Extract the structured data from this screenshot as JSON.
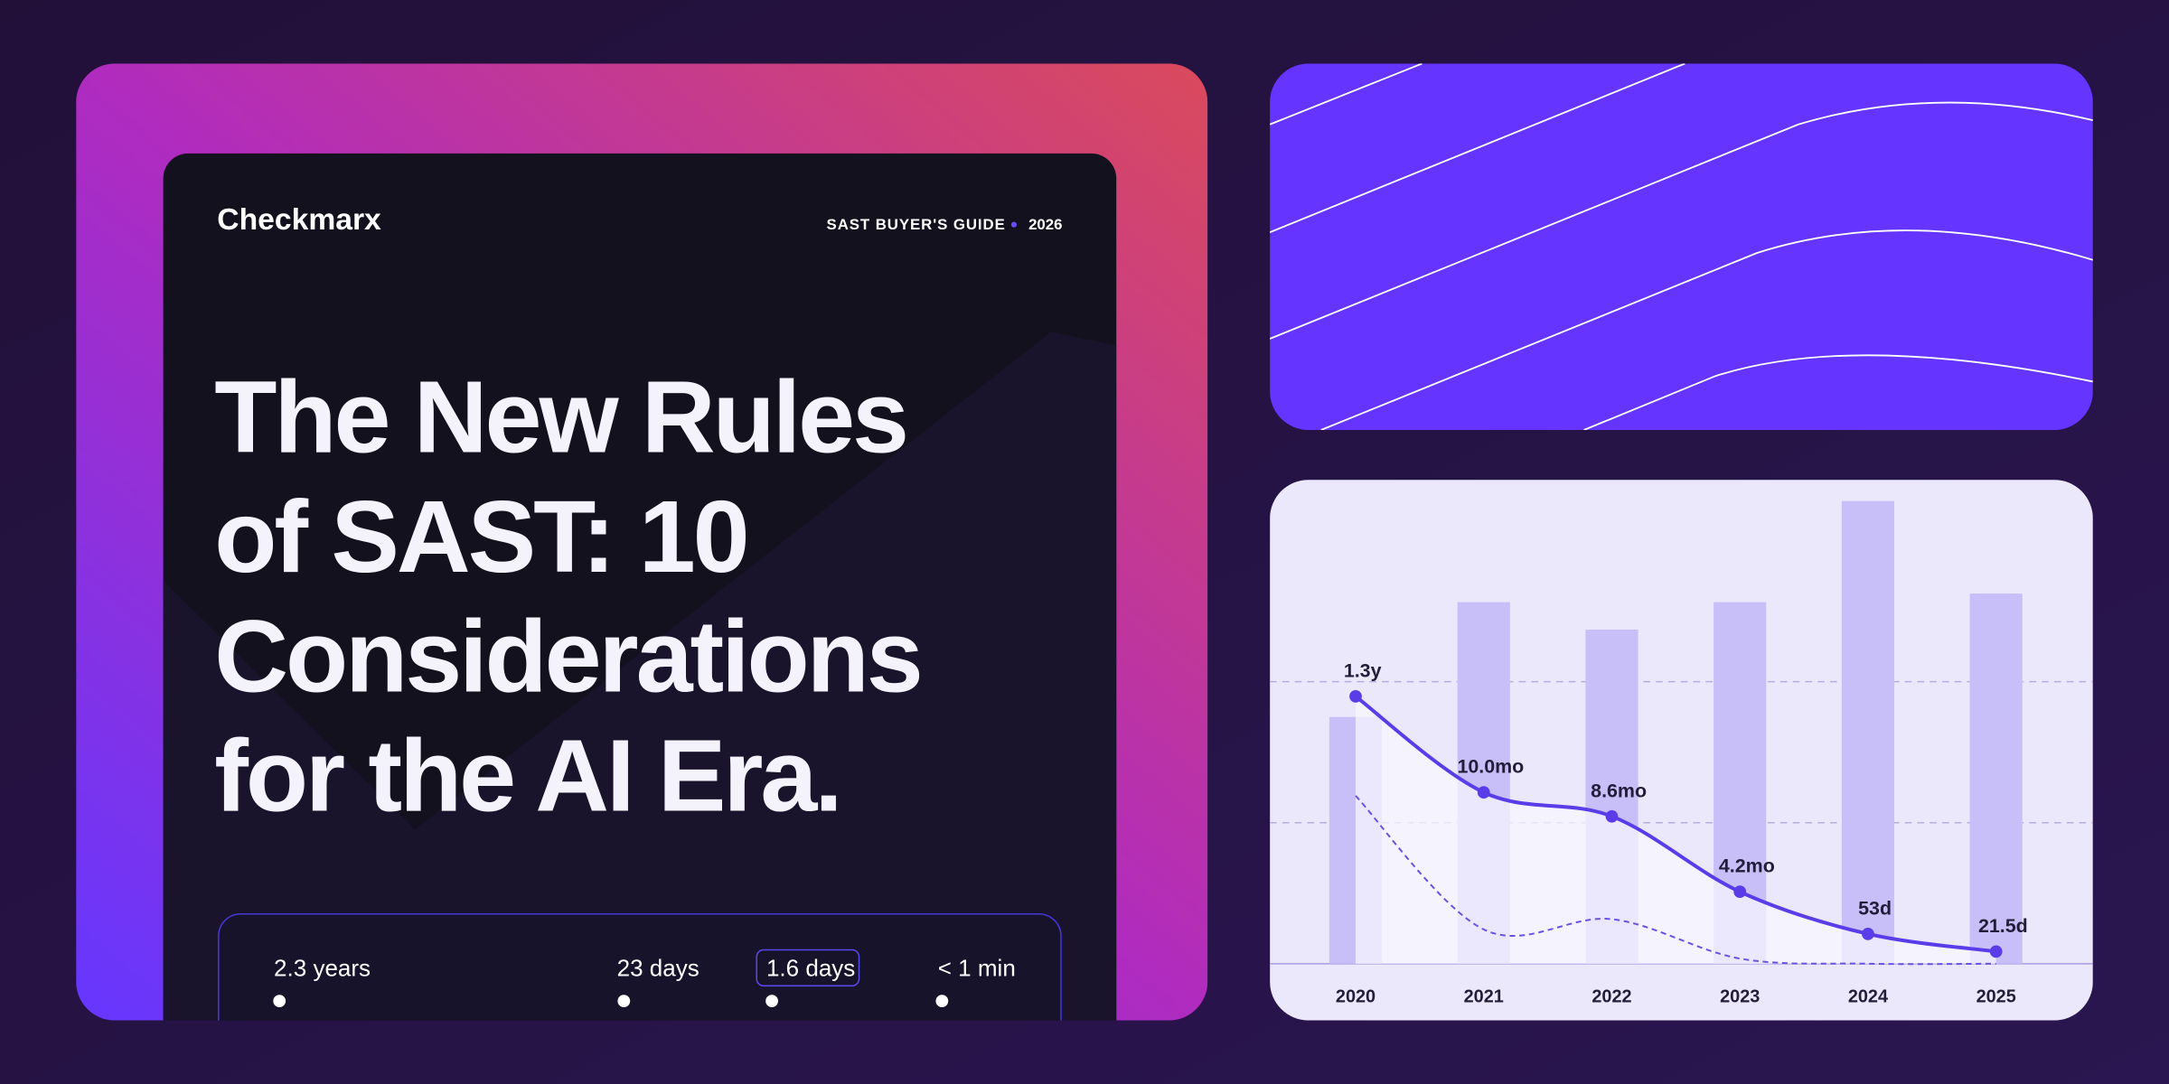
{
  "brand": "Checkmarx",
  "guide": {
    "label": "SAST BUYER'S GUIDE",
    "year": "2026"
  },
  "headline": [
    "The New Rules",
    "of SAST: 10",
    "Considerations",
    "for the AI Era."
  ],
  "timeline": [
    "2.3 years",
    "23 days",
    "1.6 days",
    "< 1 min"
  ],
  "chart_data": {
    "type": "combo",
    "categories": [
      "2020",
      "2021",
      "2022",
      "2023",
      "2024",
      "2025"
    ],
    "ylim": [
      0,
      28
    ],
    "series": [
      {
        "type": "bar",
        "color": "#c8bef8",
        "values": [
          14.4,
          21.1,
          19.5,
          21.1,
          27.0,
          21.6
        ]
      },
      {
        "type": "line",
        "color": "#5a3de8",
        "values": [
          15.6,
          10.0,
          8.6,
          4.2,
          1.74,
          0.71
        ],
        "value_labels": [
          "1.3y",
          "10.0mo",
          "8.6mo",
          "4.2mo",
          "53d",
          "21.5d"
        ]
      },
      {
        "type": "line",
        "color": "#6a52e0",
        "dashed": true,
        "values": [
          9.8,
          2.0,
          2.6,
          0.3,
          0,
          0
        ]
      }
    ]
  }
}
